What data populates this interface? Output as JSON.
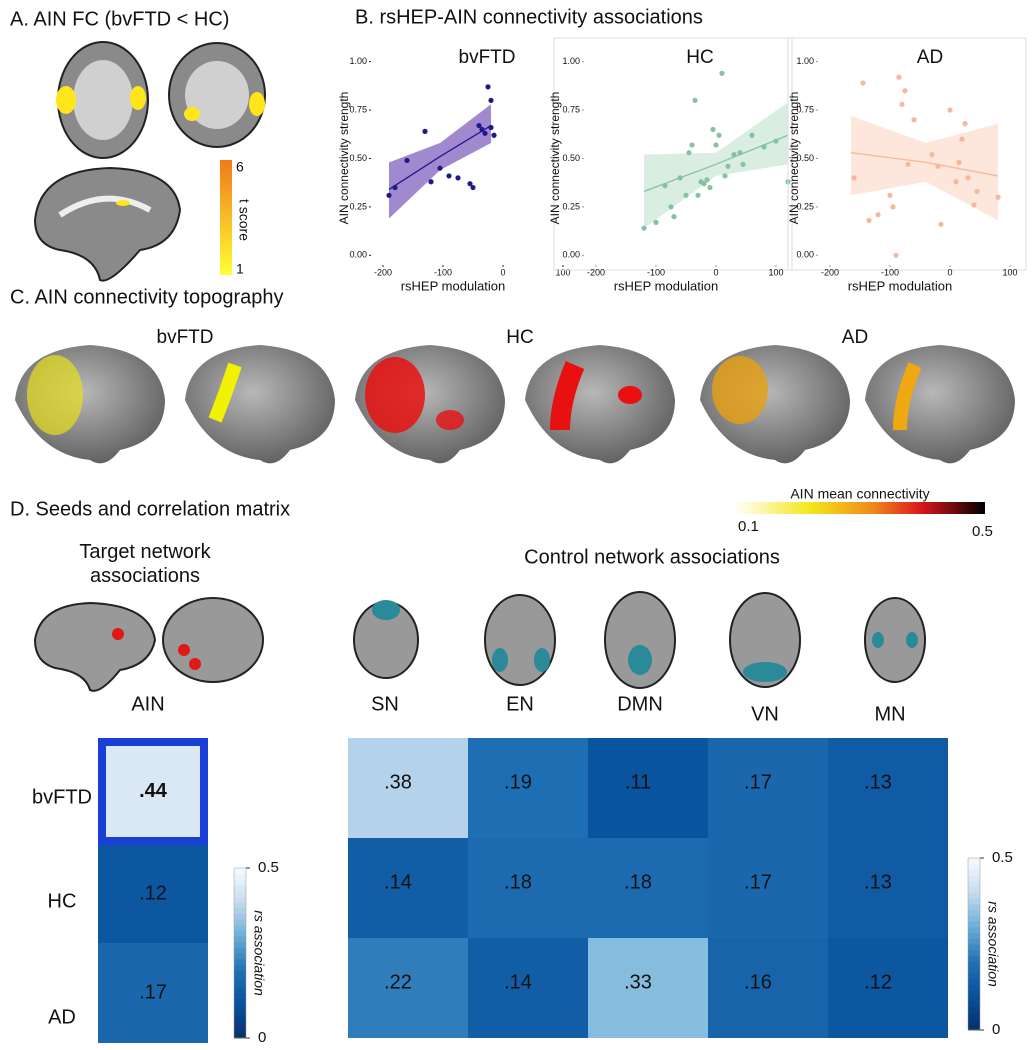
{
  "panel_a": {
    "title": "A. AIN FC (bvFTD < HC)",
    "colorbar": {
      "label": "t score",
      "ticks": [
        1,
        6
      ]
    }
  },
  "panel_b": {
    "title": "B. rsHEP-AIN connectivity associations",
    "charts": [
      {
        "type": "scatter",
        "title": "bvFTD",
        "x_label": "rsHEP modulation",
        "y_label": "AIN connectivity strength",
        "color": "#1f1a8a",
        "band_color": "#8a6cc4",
        "faded": false,
        "xlim": [
          -220,
          120
        ],
        "ylim": [
          -0.05,
          1.05
        ],
        "xticks": [
          -200,
          -100,
          0,
          100
        ],
        "yticks": [
          {
            "value": 0,
            "label": "0.00"
          },
          {
            "value": 0.25,
            "label": "0.25"
          },
          {
            "value": 0.5,
            "label": "0.50"
          },
          {
            "value": 0.75,
            "label": "0.75"
          },
          {
            "value": 1,
            "label": "1.00"
          }
        ],
        "x": [
          -190,
          -180,
          -160,
          -130,
          -120,
          -105,
          -90,
          -75,
          -55,
          -50,
          -40,
          -35,
          -30,
          -25,
          -20,
          -20,
          -15
        ],
        "y": [
          0.31,
          0.35,
          0.49,
          0.64,
          0.38,
          0.45,
          0.41,
          0.4,
          0.37,
          0.35,
          0.67,
          0.65,
          0.63,
          0.87,
          0.8,
          0.66,
          0.62
        ],
        "fit": {
          "x": [
            -190,
            -105,
            -20
          ],
          "y": [
            0.34,
            0.51,
            0.67
          ],
          "lower": [
            0.19,
            0.44,
            0.58
          ],
          "upper": [
            0.48,
            0.58,
            0.78
          ]
        }
      },
      {
        "type": "scatter",
        "title": "HC",
        "x_label": "rsHEP modulation",
        "y_label": "AIN connectivity strength",
        "color": "#86c2a2",
        "band_color": "#cfe8da",
        "faded": true,
        "xlim": [
          -220,
          120
        ],
        "ylim": [
          -0.05,
          1.05
        ],
        "xticks": [
          -200,
          -100,
          0,
          100
        ],
        "yticks": [
          {
            "value": 0,
            "label": "0.00"
          },
          {
            "value": 0.25,
            "label": "0.25"
          },
          {
            "value": 0.5,
            "label": "0.50"
          },
          {
            "value": 0.75,
            "label": "0.75"
          },
          {
            "value": 1,
            "label": "1.00"
          }
        ],
        "x": [
          -120,
          -100,
          -85,
          -75,
          -70,
          -60,
          -50,
          -45,
          -40,
          -35,
          -30,
          -25,
          -20,
          -15,
          -10,
          -5,
          0,
          5,
          10,
          15,
          20,
          30,
          40,
          45,
          60,
          80,
          100,
          120
        ],
        "y": [
          0.14,
          0.17,
          0.36,
          0.25,
          0.2,
          0.4,
          0.31,
          0.53,
          0.57,
          0.8,
          0.31,
          0.38,
          0.37,
          0.39,
          0.35,
          0.65,
          0.57,
          0.62,
          0.94,
          0.41,
          0.46,
          0.52,
          0.53,
          0.47,
          0.62,
          0.56,
          0.59,
          0.38
        ],
        "fit": {
          "x": [
            -120,
            0,
            120
          ],
          "y": [
            0.33,
            0.47,
            0.62
          ],
          "lower": [
            0.14,
            0.41,
            0.47
          ],
          "upper": [
            0.52,
            0.53,
            0.79
          ]
        }
      },
      {
        "type": "scatter",
        "title": "AD",
        "x_label": "rsHEP modulation",
        "y_label": "AIN connectivity strength",
        "color": "#f5b89a",
        "band_color": "#fde0d2",
        "faded": true,
        "xlim": [
          -220,
          120
        ],
        "ylim": [
          -0.05,
          1.05
        ],
        "xticks": [
          -200,
          -100,
          0,
          100
        ],
        "yticks": [
          {
            "value": 0,
            "label": "0.00"
          },
          {
            "value": 0.25,
            "label": "0.25"
          },
          {
            "value": 0.5,
            "label": "0.50"
          },
          {
            "value": 0.75,
            "label": "0.75"
          },
          {
            "value": 1,
            "label": "1.00"
          }
        ],
        "x": [
          -160,
          -145,
          -135,
          -120,
          -100,
          -95,
          -90,
          -85,
          -80,
          -75,
          -70,
          -60,
          -30,
          -20,
          -15,
          0,
          10,
          15,
          20,
          25,
          30,
          40,
          45,
          80
        ],
        "y": [
          0.4,
          0.89,
          0.18,
          0.21,
          0.31,
          0.25,
          0.0,
          0.92,
          0.78,
          0.85,
          0.47,
          0.7,
          0.52,
          0.46,
          0.16,
          0.75,
          0.38,
          0.48,
          0.6,
          0.68,
          0.4,
          0.26,
          0.33,
          0.3
        ],
        "fit": {
          "x": [
            -165,
            -40,
            80
          ],
          "y": [
            0.53,
            0.48,
            0.41
          ],
          "lower": [
            0.31,
            0.38,
            0.18
          ],
          "upper": [
            0.72,
            0.58,
            0.68
          ]
        }
      }
    ]
  },
  "panel_c": {
    "title": "C. AIN connectivity topography",
    "groups": [
      "bvFTD",
      "HC",
      "AD"
    ],
    "colorbar": {
      "label": "AIN mean connectivity",
      "ticks": [
        0.1,
        0.5
      ]
    }
  },
  "panel_d": {
    "title": "D. Seeds and correlation matrix",
    "target_title": "Target network associations",
    "control_title": "Control network associations",
    "target_network": "AIN",
    "control_networks": [
      "SN",
      "EN",
      "DMN",
      "VN",
      "MN"
    ],
    "groups": [
      "bvFTD",
      "HC",
      "AD"
    ],
    "target": {
      "values": [
        0.44,
        0.12,
        0.17
      ],
      "value_labels": [
        ".44",
        ".12",
        ".17"
      ]
    },
    "control": {
      "values": [
        [
          0.38,
          0.19,
          0.11,
          0.17,
          0.13
        ],
        [
          0.14,
          0.18,
          0.18,
          0.17,
          0.13
        ],
        [
          0.22,
          0.14,
          0.33,
          0.16,
          0.12
        ]
      ],
      "value_labels": [
        [
          ".38",
          ".19",
          ".11",
          ".17",
          ".13"
        ],
        [
          ".14",
          ".18",
          ".18",
          ".17",
          ".13"
        ],
        [
          ".22",
          ".14",
          ".33",
          ".16",
          ".12"
        ]
      ]
    },
    "colorbar": {
      "label": "rs association",
      "ticks": [
        0,
        0.5
      ]
    }
  }
}
